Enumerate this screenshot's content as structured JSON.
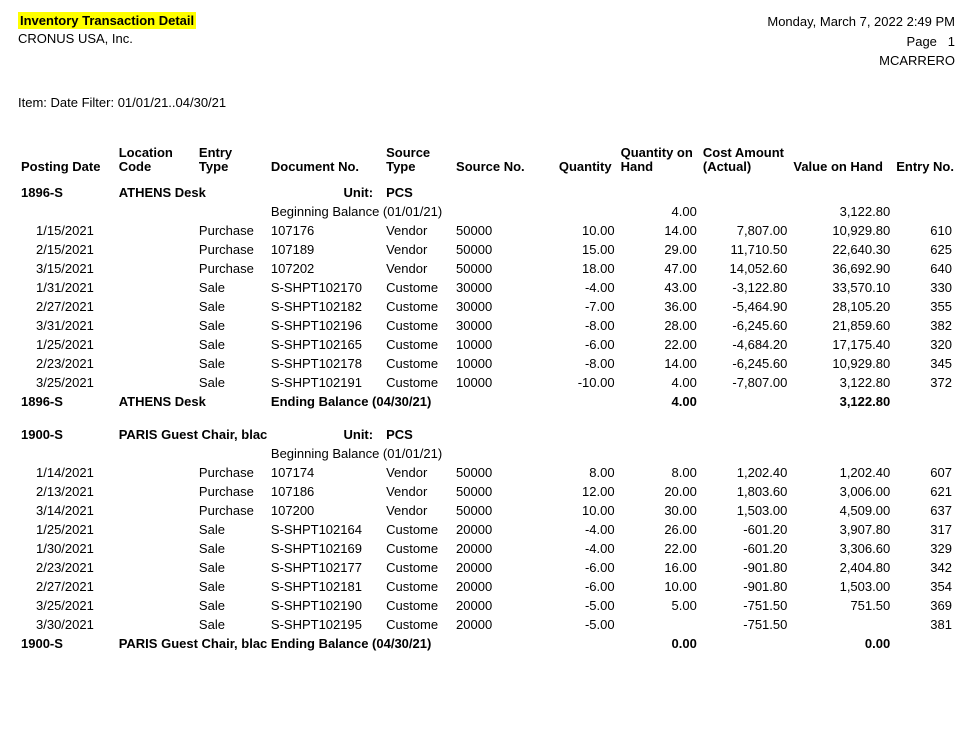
{
  "header": {
    "title": "Inventory Transaction Detail",
    "company": "CRONUS USA, Inc.",
    "datetime": "Monday, March 7, 2022 2:49 PM",
    "page_label": "Page",
    "page_no": "1",
    "user": "MCARRERO"
  },
  "filter": "Item: Date Filter: 01/01/21..04/30/21",
  "columns": {
    "postingDate": "Posting Date",
    "locationCode_l1": "Location",
    "locationCode_l2": "Code",
    "entryType_l1": "Entry",
    "entryType_l2": "Type",
    "documentNo": "Document No.",
    "sourceType_l1": "Source",
    "sourceType_l2": "Type",
    "sourceNo": "Source No.",
    "quantity": "Quantity",
    "qtyOnHand_l1": "Quantity on",
    "qtyOnHand_l2": "Hand",
    "costAmt_l1": "Cost Amount",
    "costAmt_l2": "(Actual)",
    "valueOnHand": "Value on Hand",
    "entryNo": "Entry No."
  },
  "labels": {
    "unit": "Unit:",
    "beginning": "Beginning Balance (01/01/21)",
    "ending": "Ending Balance (04/30/21)"
  },
  "items": [
    {
      "code": "1896-S",
      "desc": "ATHENS Desk",
      "unit": "PCS",
      "begin_qty": "4.00",
      "begin_val": "3,122.80",
      "end_qty": "4.00",
      "end_val": "3,122.80",
      "rows": [
        {
          "post": "1/15/2021",
          "etype": "Purchase",
          "doc": "107176",
          "stype": "Vendor",
          "sno": "50000",
          "qty": "10.00",
          "qoh": "14.00",
          "cost": "7,807.00",
          "voh": "10,929.80",
          "eno": "610"
        },
        {
          "post": "2/15/2021",
          "etype": "Purchase",
          "doc": "107189",
          "stype": "Vendor",
          "sno": "50000",
          "qty": "15.00",
          "qoh": "29.00",
          "cost": "11,710.50",
          "voh": "22,640.30",
          "eno": "625"
        },
        {
          "post": "3/15/2021",
          "etype": "Purchase",
          "doc": "107202",
          "stype": "Vendor",
          "sno": "50000",
          "qty": "18.00",
          "qoh": "47.00",
          "cost": "14,052.60",
          "voh": "36,692.90",
          "eno": "640"
        },
        {
          "post": "1/31/2021",
          "etype": "Sale",
          "doc": "S-SHPT102170",
          "stype": "Custome",
          "sno": "30000",
          "qty": "-4.00",
          "qoh": "43.00",
          "cost": "-3,122.80",
          "voh": "33,570.10",
          "eno": "330"
        },
        {
          "post": "2/27/2021",
          "etype": "Sale",
          "doc": "S-SHPT102182",
          "stype": "Custome",
          "sno": "30000",
          "qty": "-7.00",
          "qoh": "36.00",
          "cost": "-5,464.90",
          "voh": "28,105.20",
          "eno": "355"
        },
        {
          "post": "3/31/2021",
          "etype": "Sale",
          "doc": "S-SHPT102196",
          "stype": "Custome",
          "sno": "30000",
          "qty": "-8.00",
          "qoh": "28.00",
          "cost": "-6,245.60",
          "voh": "21,859.60",
          "eno": "382"
        },
        {
          "post": "1/25/2021",
          "etype": "Sale",
          "doc": "S-SHPT102165",
          "stype": "Custome",
          "sno": "10000",
          "qty": "-6.00",
          "qoh": "22.00",
          "cost": "-4,684.20",
          "voh": "17,175.40",
          "eno": "320"
        },
        {
          "post": "2/23/2021",
          "etype": "Sale",
          "doc": "S-SHPT102178",
          "stype": "Custome",
          "sno": "10000",
          "qty": "-8.00",
          "qoh": "14.00",
          "cost": "-6,245.60",
          "voh": "10,929.80",
          "eno": "345"
        },
        {
          "post": "3/25/2021",
          "etype": "Sale",
          "doc": "S-SHPT102191",
          "stype": "Custome",
          "sno": "10000",
          "qty": "-10.00",
          "qoh": "4.00",
          "cost": "-7,807.00",
          "voh": "3,122.80",
          "eno": "372"
        }
      ]
    },
    {
      "code": "1900-S",
      "desc": "PARIS Guest Chair, black",
      "unit": "PCS",
      "begin_qty": "",
      "begin_val": "",
      "end_qty": "0.00",
      "end_val": "0.00",
      "rows": [
        {
          "post": "1/14/2021",
          "etype": "Purchase",
          "doc": "107174",
          "stype": "Vendor",
          "sno": "50000",
          "qty": "8.00",
          "qoh": "8.00",
          "cost": "1,202.40",
          "voh": "1,202.40",
          "eno": "607"
        },
        {
          "post": "2/13/2021",
          "etype": "Purchase",
          "doc": "107186",
          "stype": "Vendor",
          "sno": "50000",
          "qty": "12.00",
          "qoh": "20.00",
          "cost": "1,803.60",
          "voh": "3,006.00",
          "eno": "621"
        },
        {
          "post": "3/14/2021",
          "etype": "Purchase",
          "doc": "107200",
          "stype": "Vendor",
          "sno": "50000",
          "qty": "10.00",
          "qoh": "30.00",
          "cost": "1,503.00",
          "voh": "4,509.00",
          "eno": "637"
        },
        {
          "post": "1/25/2021",
          "etype": "Sale",
          "doc": "S-SHPT102164",
          "stype": "Custome",
          "sno": "20000",
          "qty": "-4.00",
          "qoh": "26.00",
          "cost": "-601.20",
          "voh": "3,907.80",
          "eno": "317"
        },
        {
          "post": "1/30/2021",
          "etype": "Sale",
          "doc": "S-SHPT102169",
          "stype": "Custome",
          "sno": "20000",
          "qty": "-4.00",
          "qoh": "22.00",
          "cost": "-601.20",
          "voh": "3,306.60",
          "eno": "329"
        },
        {
          "post": "2/23/2021",
          "etype": "Sale",
          "doc": "S-SHPT102177",
          "stype": "Custome",
          "sno": "20000",
          "qty": "-6.00",
          "qoh": "16.00",
          "cost": "-901.80",
          "voh": "2,404.80",
          "eno": "342"
        },
        {
          "post": "2/27/2021",
          "etype": "Sale",
          "doc": "S-SHPT102181",
          "stype": "Custome",
          "sno": "20000",
          "qty": "-6.00",
          "qoh": "10.00",
          "cost": "-901.80",
          "voh": "1,503.00",
          "eno": "354"
        },
        {
          "post": "3/25/2021",
          "etype": "Sale",
          "doc": "S-SHPT102190",
          "stype": "Custome",
          "sno": "20000",
          "qty": "-5.00",
          "qoh": "5.00",
          "cost": "-751.50",
          "voh": "751.50",
          "eno": "369"
        },
        {
          "post": "3/30/2021",
          "etype": "Sale",
          "doc": "S-SHPT102195",
          "stype": "Custome",
          "sno": "20000",
          "qty": "-5.00",
          "qoh": "",
          "cost": "-751.50",
          "voh": "",
          "eno": "381"
        }
      ]
    }
  ]
}
